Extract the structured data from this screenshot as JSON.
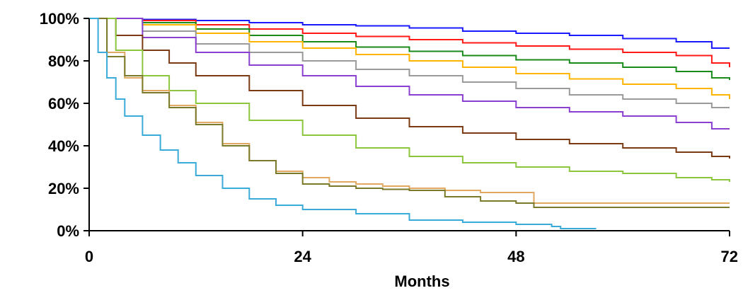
{
  "chart_data": {
    "type": "line",
    "step": true,
    "title": "",
    "xlabel": "Months",
    "ylabel": "",
    "xlim": [
      0,
      72
    ],
    "ylim": [
      0,
      100
    ],
    "x_ticks": [
      0,
      24,
      48,
      72
    ],
    "x_tick_labels": [
      "0",
      "24",
      "48",
      "72"
    ],
    "y_ticks": [
      0,
      20,
      40,
      60,
      80,
      100
    ],
    "y_tick_labels": [
      "0%",
      "20%",
      "40%",
      "60%",
      "80%",
      "100%"
    ],
    "grid": false,
    "legend": "none",
    "series": [
      {
        "color": "#1a1aff",
        "x": [
          0,
          6,
          12,
          18,
          24,
          30,
          36,
          42,
          48,
          54,
          60,
          66,
          70,
          72
        ],
        "values": [
          100,
          99.5,
          99,
          98,
          97,
          96.5,
          95.5,
          94,
          93,
          92,
          90.5,
          89,
          86,
          86
        ]
      },
      {
        "color": "#ff1a1a",
        "x": [
          0,
          6,
          12,
          18,
          24,
          30,
          36,
          42,
          48,
          54,
          60,
          66,
          70,
          72
        ],
        "values": [
          100,
          99,
          97,
          95,
          93,
          91.5,
          90,
          88.5,
          87,
          85.5,
          84,
          82.5,
          79,
          77
        ]
      },
      {
        "color": "#1a8a1a",
        "x": [
          0,
          6,
          12,
          18,
          24,
          30,
          36,
          42,
          48,
          54,
          60,
          66,
          70,
          72
        ],
        "values": [
          100,
          98,
          95,
          92,
          89,
          86.5,
          84.5,
          82.5,
          80.5,
          79,
          77,
          75,
          72,
          71
        ]
      },
      {
        "color": "#ffb400",
        "x": [
          0,
          6,
          12,
          18,
          24,
          30,
          36,
          42,
          48,
          54,
          60,
          66,
          70,
          72
        ],
        "values": [
          100,
          97,
          93,
          89,
          86,
          83,
          80,
          77,
          74,
          71.5,
          69,
          67,
          64,
          62
        ]
      },
      {
        "color": "#9a9a9a",
        "x": [
          0,
          6,
          12,
          18,
          24,
          30,
          36,
          42,
          48,
          54,
          60,
          66,
          70,
          72
        ],
        "values": [
          100,
          94,
          88,
          84,
          80,
          76,
          73,
          70,
          67,
          64,
          62,
          60,
          58,
          58
        ]
      },
      {
        "color": "#8b3fd1",
        "x": [
          0,
          6,
          12,
          18,
          24,
          30,
          36,
          42,
          48,
          54,
          60,
          66,
          70,
          72
        ],
        "values": [
          100,
          91,
          84,
          78,
          73,
          68,
          64,
          61,
          58,
          56,
          54,
          51,
          48,
          48
        ]
      },
      {
        "color": "#7a3b14",
        "x": [
          0,
          3,
          6,
          9,
          12,
          18,
          24,
          30,
          36,
          42,
          48,
          54,
          60,
          66,
          70,
          72
        ],
        "values": [
          100,
          92,
          85,
          79,
          73,
          66,
          59,
          53,
          49,
          46,
          43,
          41,
          39,
          37,
          35,
          34
        ]
      },
      {
        "color": "#8cc63f",
        "x": [
          0,
          3,
          6,
          9,
          12,
          18,
          24,
          30,
          36,
          42,
          48,
          54,
          60,
          66,
          70,
          72
        ],
        "values": [
          100,
          85,
          73,
          66,
          60,
          52,
          45,
          39,
          35,
          32,
          30,
          28,
          27,
          25,
          24,
          23
        ]
      },
      {
        "color": "#e0a860",
        "x": [
          0,
          2,
          4,
          6,
          9,
          12,
          15,
          18,
          21,
          24,
          27,
          30,
          33,
          36,
          40,
          44,
          48,
          50,
          52,
          72
        ],
        "values": [
          100,
          84,
          72,
          66,
          59,
          51,
          41,
          33,
          28,
          25,
          23,
          22,
          21,
          20,
          19,
          18,
          18,
          13,
          13,
          13
        ]
      },
      {
        "color": "#7a7a2a",
        "x": [
          0,
          2,
          4,
          6,
          9,
          12,
          15,
          18,
          21,
          24,
          27,
          30,
          33,
          36,
          40,
          44,
          48,
          50,
          52,
          72
        ],
        "values": [
          100,
          82,
          73,
          65,
          58,
          50,
          40,
          33,
          27,
          22,
          21,
          20,
          19.5,
          19,
          16,
          14,
          13,
          11,
          11,
          11
        ]
      },
      {
        "color": "#3aaad8",
        "x": [
          0,
          1,
          2,
          3,
          4,
          6,
          8,
          10,
          12,
          15,
          18,
          21,
          24,
          30,
          36,
          42,
          48,
          52,
          53,
          57
        ],
        "values": [
          100,
          84,
          72,
          62,
          54,
          45,
          38,
          32,
          26,
          20,
          15,
          12,
          10,
          8,
          5,
          4,
          3,
          2,
          1,
          1
        ]
      }
    ]
  }
}
